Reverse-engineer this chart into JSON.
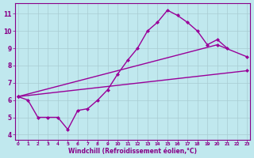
{
  "bg_color": "#c0e8ee",
  "grid_color": "#a8ccd2",
  "line_color": "#990099",
  "markersize": 2.5,
  "linewidth": 1.0,
  "c1x": [
    0,
    1,
    2,
    3,
    4,
    5,
    6,
    7,
    8,
    9,
    10,
    11,
    12,
    13,
    14,
    15,
    16,
    17,
    18,
    19,
    20,
    21
  ],
  "c1y": [
    6.2,
    6.0,
    5.0,
    5.0,
    5.0,
    4.3,
    5.4,
    5.5,
    6.0,
    6.6,
    7.5,
    8.3,
    9.0,
    10.0,
    10.5,
    11.2,
    10.9,
    10.5,
    10.0,
    9.2,
    9.5,
    9.0
  ],
  "c2x": [
    0,
    23
  ],
  "c2y": [
    6.2,
    7.7
  ],
  "c3x": [
    0,
    20,
    23
  ],
  "c3y": [
    6.2,
    9.2,
    8.5
  ],
  "xlabel": "Windchill (Refroidissement éolien,°C)",
  "xticks": [
    0,
    1,
    2,
    3,
    4,
    5,
    6,
    7,
    8,
    9,
    10,
    11,
    12,
    13,
    14,
    15,
    16,
    17,
    18,
    19,
    20,
    21,
    22,
    23
  ],
  "yticks": [
    4,
    5,
    6,
    7,
    8,
    9,
    10,
    11
  ],
  "xlim": [
    -0.3,
    23.3
  ],
  "ylim": [
    3.7,
    11.6
  ],
  "tick_color": "#880088",
  "axis_color": "#880088",
  "xlabel_color": "#880088"
}
